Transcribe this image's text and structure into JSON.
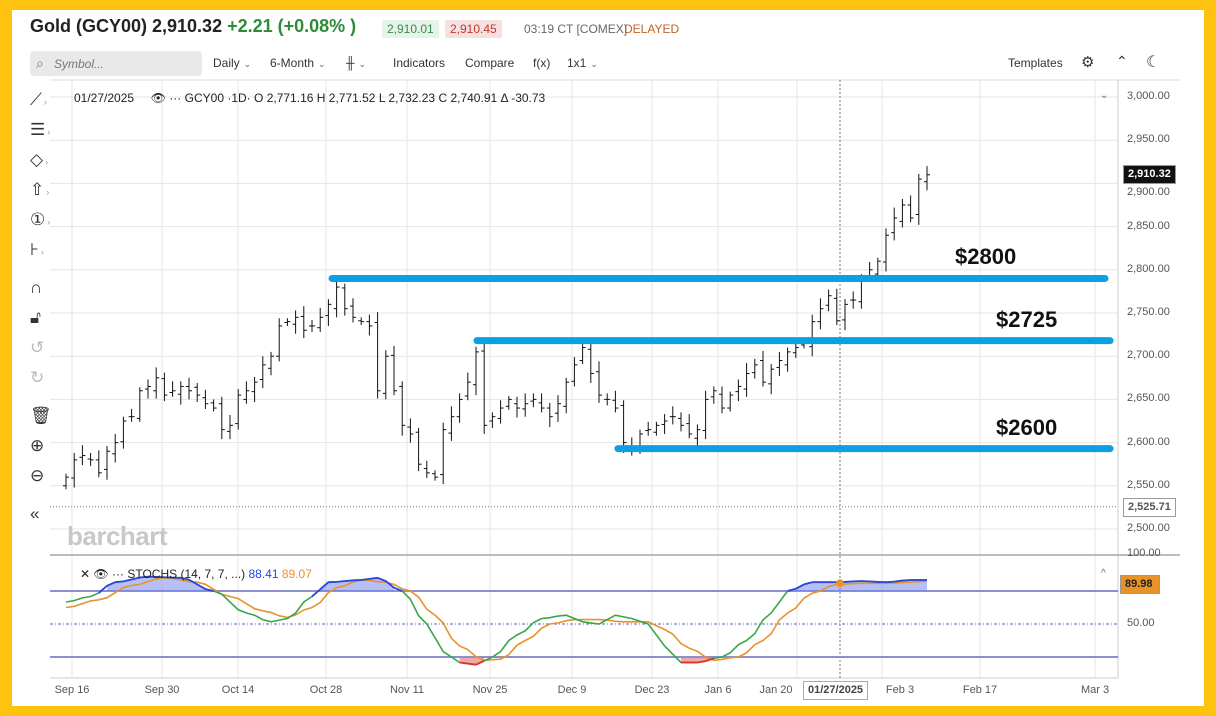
{
  "header": {
    "title": "Gold (GCY00) 2,910.32",
    "change": "+2.21 (+0.08% )",
    "bid": "2,910.01",
    "ask": "2,910.45",
    "time": "03:19 CT  [COMEX]",
    "status": "DELAYED"
  },
  "toolbar": {
    "search_placeholder": "Symbol...",
    "interval": "Daily",
    "range": "6-Month",
    "indicators": "Indicators",
    "compare": "Compare",
    "fx": "f(x)",
    "layout": "1x1",
    "templates": "Templates"
  },
  "legend": {
    "date": "01/27/2025",
    "symbol": "GCY00 ·1D·",
    "open": "O 2,771.16",
    "high": "H 2,771.52",
    "low": "L 2,732.23",
    "close": "C 2,740.91",
    "delta": "Δ -30.73"
  },
  "stoch_legend": {
    "name": "STOCHS (14, 7, 7, ...)",
    "k": "88.41",
    "d": "89.07",
    "current": "89.98",
    "axis_100": "100.00",
    "axis_50": "50.00"
  },
  "price_axis": [
    "3,000.00",
    "2,950.00",
    "2,900.00",
    "2,850.00",
    "2,800.00",
    "2,750.00",
    "2,700.00",
    "2,650.00",
    "2,600.00",
    "2,550.00",
    "2,500.00"
  ],
  "last_price": "2,910.32",
  "crosshair_price": "2,525.71",
  "crosshair_date": "01/27/2025",
  "date_axis": [
    "Sep 16",
    "Sep 30",
    "Oct 14",
    "Oct 28",
    "Nov 11",
    "Nov 25",
    "Dec 9",
    "Dec 23",
    "Jan 6",
    "Jan 20",
    "Feb 3",
    "Feb 17",
    "Mar 3"
  ],
  "watermark": "barchart",
  "annotations": [
    {
      "label": "$2800",
      "level": 2790
    },
    {
      "label": "$2725",
      "level": 2718
    },
    {
      "label": "$2600",
      "level": 2593
    }
  ],
  "colors": {
    "level_line": "#0ba0e3",
    "up": "#2e8b3a",
    "k": "#2a45e0",
    "d": "#e8922a",
    "stoch_green": "#3aa64a",
    "frame": "#FFC20E"
  },
  "chart_data": {
    "type": "ohlc",
    "closes": [
      2560,
      2580,
      2585,
      2580,
      2565,
      2590,
      2600,
      2625,
      2630,
      2660,
      2665,
      2675,
      2655,
      2660,
      2665,
      2660,
      2655,
      2645,
      2640,
      2615,
      2620,
      2655,
      2660,
      2670,
      2690,
      2700,
      2735,
      2740,
      2745,
      2730,
      2735,
      2745,
      2760,
      2780,
      2755,
      2745,
      2740,
      2735,
      2660,
      2700,
      2660,
      2620,
      2610,
      2575,
      2565,
      2560,
      2615,
      2630,
      2650,
      2670,
      2705,
      2620,
      2630,
      2640,
      2650,
      2640,
      2645,
      2650,
      2640,
      2630,
      2645,
      2670,
      2690,
      2710,
      2680,
      2655,
      2650,
      2640,
      2600,
      2595,
      2610,
      2615,
      2620,
      2625,
      2630,
      2620,
      2610,
      2615,
      2650,
      2660,
      2640,
      2655,
      2665,
      2680,
      2690,
      2670,
      2685,
      2695,
      2705,
      2710,
      2715,
      2740,
      2755,
      2770,
      2741,
      2760,
      2765,
      2790,
      2800,
      2810,
      2840,
      2860,
      2875,
      2860,
      2905,
      2910
    ],
    "ylim": [
      2500,
      3000
    ],
    "stoch_k": [
      [
        0,
        70
      ],
      [
        3,
        75
      ],
      [
        6,
        88
      ],
      [
        10,
        93
      ],
      [
        14,
        92
      ],
      [
        18,
        80
      ],
      [
        22,
        60
      ],
      [
        25,
        52
      ],
      [
        27,
        55
      ],
      [
        30,
        75
      ],
      [
        32,
        88
      ],
      [
        36,
        90
      ],
      [
        38,
        92
      ],
      [
        41,
        80
      ],
      [
        44,
        50
      ],
      [
        46,
        25
      ],
      [
        48,
        15
      ],
      [
        50,
        13
      ],
      [
        52,
        20
      ],
      [
        55,
        40
      ],
      [
        58,
        55
      ],
      [
        61,
        58
      ],
      [
        63,
        52
      ],
      [
        65,
        50
      ],
      [
        67,
        58
      ],
      [
        69,
        55
      ],
      [
        71,
        50
      ],
      [
        73,
        30
      ],
      [
        75,
        15
      ],
      [
        77,
        15
      ],
      [
        80,
        20
      ],
      [
        83,
        35
      ],
      [
        86,
        60
      ],
      [
        88,
        80
      ],
      [
        91,
        88
      ],
      [
        94,
        88
      ],
      [
        97,
        89
      ],
      [
        100,
        88
      ],
      [
        103,
        90
      ],
      [
        105,
        90
      ]
    ],
    "stoch_d": [
      [
        0,
        65
      ],
      [
        4,
        72
      ],
      [
        8,
        85
      ],
      [
        12,
        92
      ],
      [
        16,
        88
      ],
      [
        20,
        75
      ],
      [
        24,
        62
      ],
      [
        27,
        56
      ],
      [
        30,
        65
      ],
      [
        33,
        83
      ],
      [
        36,
        90
      ],
      [
        39,
        88
      ],
      [
        42,
        80
      ],
      [
        45,
        58
      ],
      [
        48,
        30
      ],
      [
        51,
        17
      ],
      [
        53,
        18
      ],
      [
        56,
        35
      ],
      [
        59,
        50
      ],
      [
        62,
        54
      ],
      [
        65,
        54
      ],
      [
        68,
        52
      ],
      [
        71,
        52
      ],
      [
        73,
        45
      ],
      [
        76,
        28
      ],
      [
        79,
        17
      ],
      [
        82,
        20
      ],
      [
        85,
        35
      ],
      [
        88,
        60
      ],
      [
        91,
        78
      ],
      [
        94,
        86
      ],
      [
        97,
        87
      ],
      [
        100,
        87
      ],
      [
        103,
        88
      ],
      [
        105,
        89
      ]
    ],
    "stoch_ylim": [
      0,
      100
    ],
    "overbought": 80,
    "oversold": 20
  }
}
